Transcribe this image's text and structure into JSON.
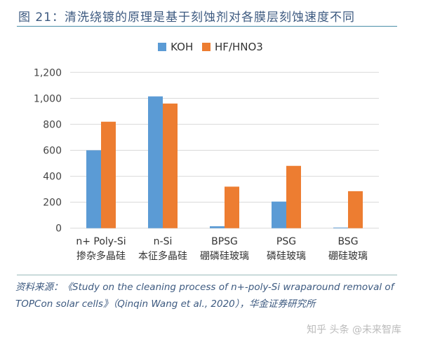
{
  "header": {
    "title": "图 21：清洗绕镀的原理是基于刻蚀剂对各膜层刻蚀速度不同"
  },
  "footer": {
    "source": "资料来源：《Study on the cleaning process of n+-poly-Si wraparound removal of TOPCon solar cells》（Qinqin Wang et al., 2020），华金证券研究所",
    "watermark": "知乎 头条 @未来智库"
  },
  "chart_data": {
    "type": "bar",
    "categories": [
      [
        "n+ Poly-Si",
        "掺杂多晶硅"
      ],
      [
        "n-Si",
        "本征多晶硅"
      ],
      [
        "BPSG",
        "硼磷硅玻璃"
      ],
      [
        "PSG",
        "磷硅玻璃"
      ],
      [
        "BSG",
        "硼硅玻璃"
      ]
    ],
    "series": [
      {
        "name": "KOH",
        "color": "#5b9bd5",
        "values": [
          600,
          1015,
          15,
          205,
          5
        ]
      },
      {
        "name": "HF/HNO3",
        "color": "#ed7d31",
        "values": [
          820,
          960,
          320,
          480,
          285
        ]
      }
    ],
    "ylim": [
      0,
      1200
    ],
    "yticks": [
      0,
      200,
      400,
      600,
      800,
      1000,
      1200
    ],
    "ytick_labels": [
      "0",
      "200",
      "400",
      "600",
      "800",
      "1,000",
      "1,200"
    ],
    "grid": true,
    "legend": "top"
  }
}
